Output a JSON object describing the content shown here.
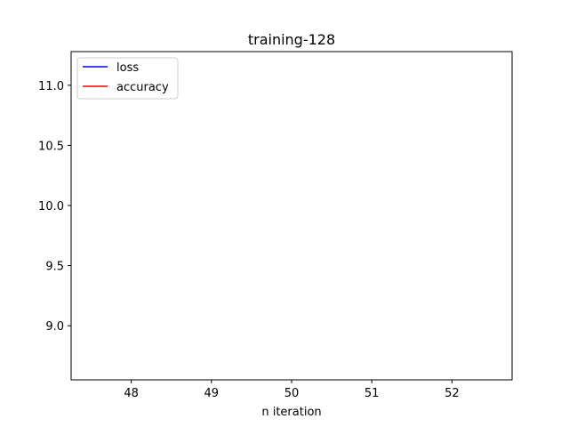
{
  "chart_data": {
    "type": "line",
    "title": "training-128",
    "xlabel": "n iteration",
    "ylabel": "",
    "xlim": [
      47.25,
      52.75
    ],
    "ylim": [
      8.55,
      11.28
    ],
    "x_ticks": [
      48,
      49,
      50,
      51,
      52
    ],
    "x_tick_labels": [
      "48",
      "49",
      "50",
      "51",
      "52"
    ],
    "y_ticks": [
      9.0,
      9.5,
      10.0,
      10.5,
      11.0
    ],
    "y_tick_labels": [
      "9.0",
      "9.5",
      "10.0",
      "10.5",
      "11.0"
    ],
    "grid": false,
    "legend_position": "top-left",
    "series": [
      {
        "name": "loss",
        "color": "#0000ff",
        "x": [],
        "y": []
      },
      {
        "name": "accuracy",
        "color": "#ff0000",
        "x": [],
        "y": []
      }
    ]
  }
}
